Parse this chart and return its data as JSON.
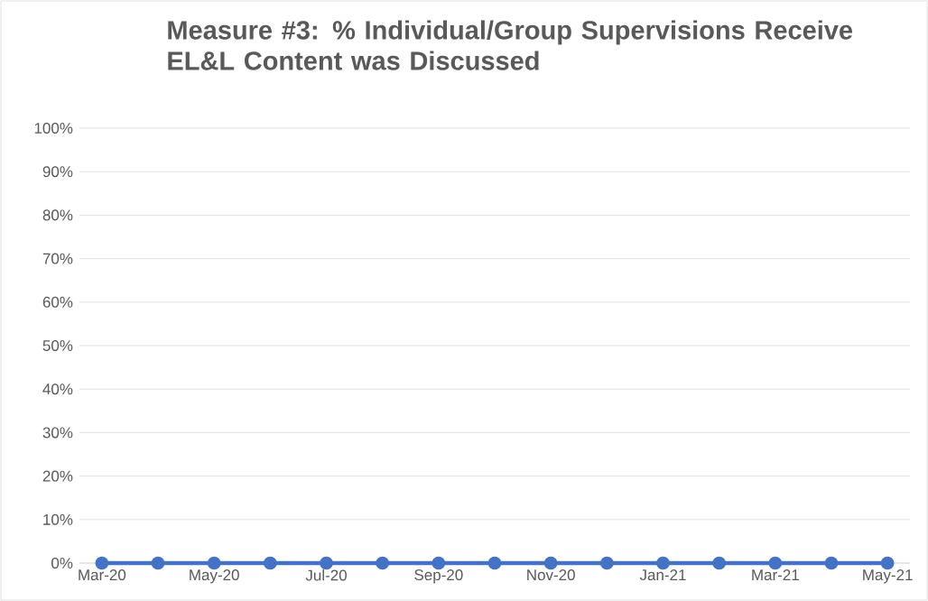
{
  "chart_data": {
    "type": "line",
    "title": "Measure #3: % Individual/Group Supervisions Receive EL&L Content was Discussed",
    "categories": [
      "Mar-20",
      null,
      "May-20",
      null,
      "Jul-20",
      null,
      "Sep-20",
      null,
      "Nov-20",
      null,
      "Jan-21",
      null,
      "Mar-21",
      null,
      "May-21"
    ],
    "series": [
      {
        "color": "#4472c4",
        "values": [
          0,
          0,
          0,
          0,
          0,
          0,
          0,
          0,
          0,
          0,
          0,
          0,
          0,
          0,
          0
        ]
      }
    ],
    "ylim": [
      0,
      100
    ],
    "yticks": [
      {
        "value": 0,
        "label": "0%"
      },
      {
        "value": 10,
        "label": "10%"
      },
      {
        "value": 20,
        "label": "20%"
      },
      {
        "value": 30,
        "label": "30%"
      },
      {
        "value": 40,
        "label": "40%"
      },
      {
        "value": 50,
        "label": "50%"
      },
      {
        "value": 60,
        "label": "60%"
      },
      {
        "value": 70,
        "label": "70%"
      },
      {
        "value": 80,
        "label": "80%"
      },
      {
        "value": 90,
        "label": "90%"
      },
      {
        "value": 100,
        "label": "100%"
      }
    ],
    "grid": "y",
    "marker": "circle",
    "line_style": "solid"
  }
}
